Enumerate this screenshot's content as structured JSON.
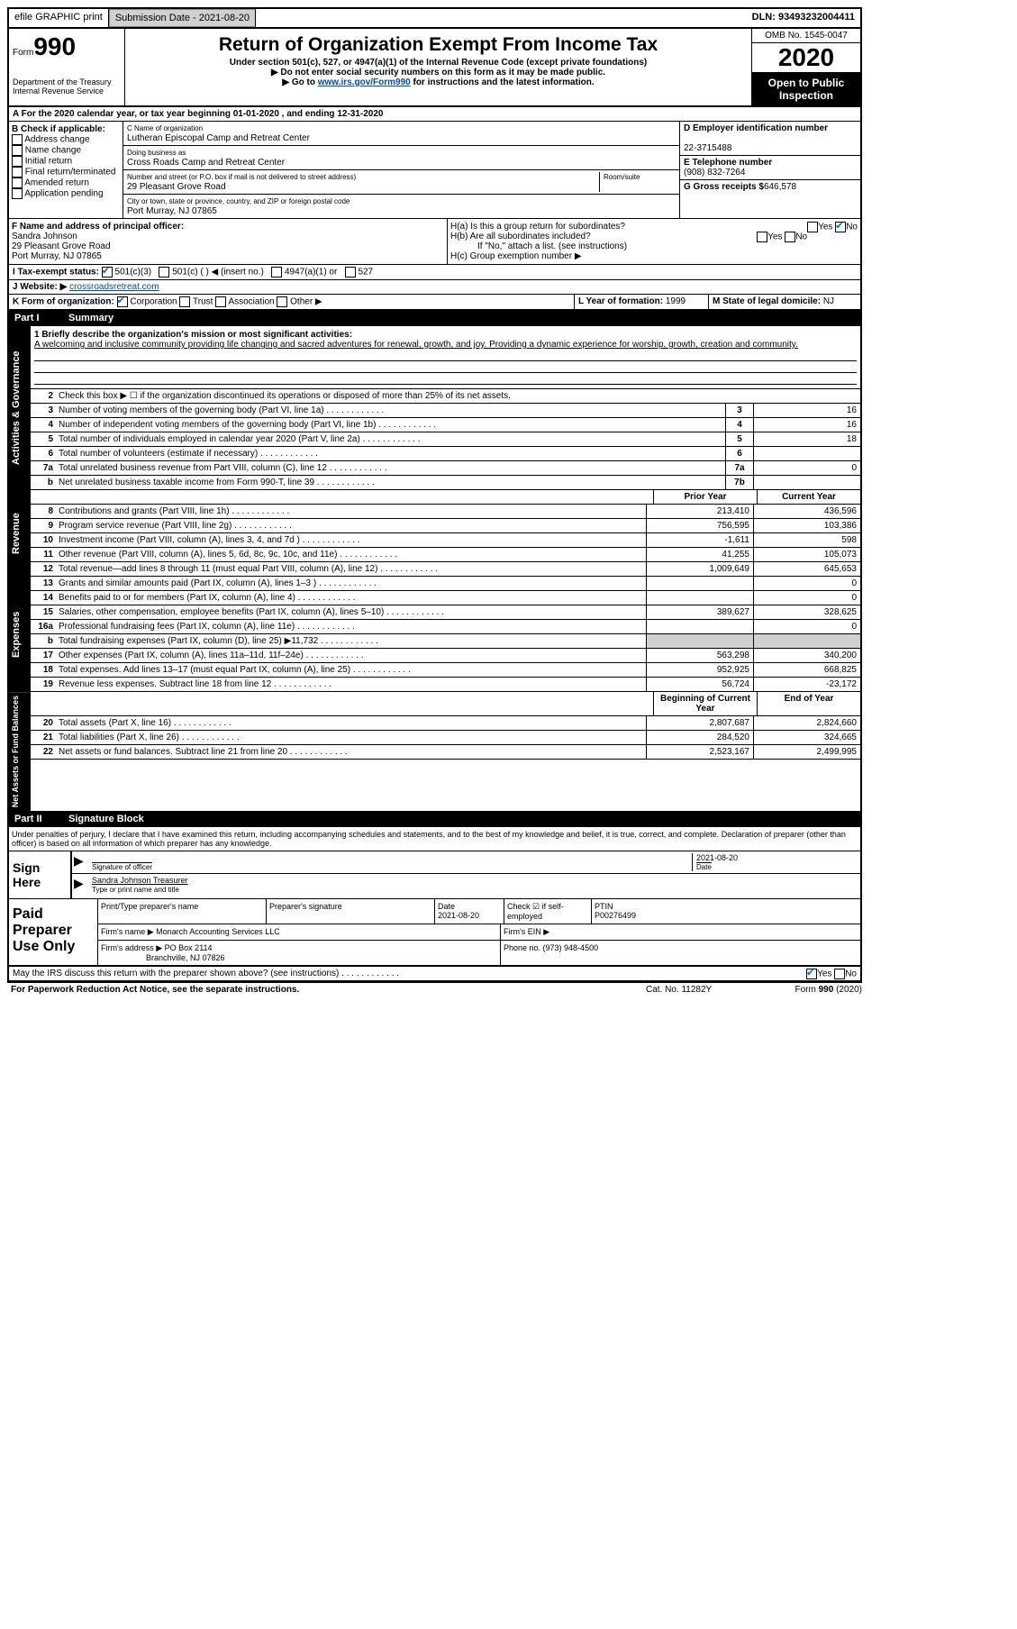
{
  "top": {
    "efile": "efile GRAPHIC print",
    "submission": "Submission Date - 2021-08-20",
    "dln": "DLN: 93493232004411"
  },
  "header": {
    "form_label": "Form",
    "form_num": "990",
    "dept": "Department of the Treasury\nInternal Revenue Service",
    "title": "Return of Organization Exempt From Income Tax",
    "sub1": "Under section 501(c), 527, or 4947(a)(1) of the Internal Revenue Code (except private foundations)",
    "sub2": "▶ Do not enter social security numbers on this form as it may be made public.",
    "sub3_pre": "▶ Go to ",
    "sub3_link": "www.irs.gov/Form990",
    "sub3_post": " for instructions and the latest information.",
    "omb": "OMB No. 1545-0047",
    "year": "2020",
    "open": "Open to Public Inspection"
  },
  "rowA": "A For the 2020 calendar year, or tax year beginning 01-01-2020   , and ending 12-31-2020",
  "B": {
    "label": "B Check if applicable:",
    "items": [
      "Address change",
      "Name change",
      "Initial return",
      "Final return/terminated",
      "Amended return",
      "Application pending"
    ]
  },
  "C": {
    "name_label": "C Name of organization",
    "name": "Lutheran Episcopal Camp and Retreat Center",
    "dba_label": "Doing business as",
    "dba": "Cross Roads Camp and Retreat Center",
    "street_label": "Number and street (or P.O. box if mail is not delivered to street address)",
    "room_label": "Room/suite",
    "street": "29 Pleasant Grove Road",
    "city_label": "City or town, state or province, country, and ZIP or foreign postal code",
    "city": "Port Murray, NJ  07865"
  },
  "D": {
    "label": "D Employer identification number",
    "ein": "22-3715488",
    "tel_label": "E Telephone number",
    "tel": "(908) 832-7264",
    "gross_label": "G Gross receipts $",
    "gross": "646,578"
  },
  "F": {
    "label": "F  Name and address of principal officer:",
    "name": "Sandra Johnson",
    "addr1": "29 Pleasant Grove Road",
    "addr2": "Port Murray, NJ  07865"
  },
  "H": {
    "a": "H(a)  Is this a group return for subordinates?",
    "b": "H(b)  Are all subordinates included?",
    "b_note": "If \"No,\" attach a list. (see instructions)",
    "c": "H(c)  Group exemption number ▶"
  },
  "I": "I  Tax-exempt status:",
  "I_opts": [
    "501(c)(3)",
    "501(c) (  ) ◀ (insert no.)",
    "4947(a)(1) or",
    "527"
  ],
  "J": {
    "label": "J  Website: ▶",
    "val": "crossroadsretreat.com"
  },
  "K": {
    "label": "K Form of organization:",
    "opts": [
      "Corporation",
      "Trust",
      "Association",
      "Other ▶"
    ]
  },
  "L": {
    "label": "L Year of formation:",
    "val": "1999"
  },
  "M": {
    "label": "M State of legal domicile:",
    "val": "NJ"
  },
  "part1": {
    "label": "Part I",
    "title": "Summary",
    "line1_label": "1  Briefly describe the organization's mission or most significant activities:",
    "mission": "A welcoming and inclusive community providing life changing and sacred adventures for renewal, growth, and joy. Providing a dynamic experience for worship, growth, creation and community.",
    "line2": "Check this box ▶ ☐  if the organization discontinued its operations or disposed of more than 25% of its net assets.",
    "vlabels": {
      "ag": "Activities & Governance",
      "rev": "Revenue",
      "exp": "Expenses",
      "na": "Net Assets or Fund Balances"
    },
    "gov_lines": [
      {
        "n": "3",
        "d": "Number of voting members of the governing body (Part VI, line 1a)",
        "b": "3",
        "v": "16"
      },
      {
        "n": "4",
        "d": "Number of independent voting members of the governing body (Part VI, line 1b)",
        "b": "4",
        "v": "16"
      },
      {
        "n": "5",
        "d": "Total number of individuals employed in calendar year 2020 (Part V, line 2a)",
        "b": "5",
        "v": "18"
      },
      {
        "n": "6",
        "d": "Total number of volunteers (estimate if necessary)",
        "b": "6",
        "v": ""
      },
      {
        "n": "7a",
        "d": "Total unrelated business revenue from Part VIII, column (C), line 12",
        "b": "7a",
        "v": "0"
      },
      {
        "n": "b",
        "d": "Net unrelated business taxable income from Form 990-T, line 39",
        "b": "7b",
        "v": ""
      }
    ],
    "col_headers": {
      "prior": "Prior Year",
      "current": "Current Year"
    },
    "rev_lines": [
      {
        "n": "8",
        "d": "Contributions and grants (Part VIII, line 1h)",
        "p": "213,410",
        "c": "436,596"
      },
      {
        "n": "9",
        "d": "Program service revenue (Part VIII, line 2g)",
        "p": "756,595",
        "c": "103,386"
      },
      {
        "n": "10",
        "d": "Investment income (Part VIII, column (A), lines 3, 4, and 7d )",
        "p": "-1,611",
        "c": "598"
      },
      {
        "n": "11",
        "d": "Other revenue (Part VIII, column (A), lines 5, 6d, 8c, 9c, 10c, and 11e)",
        "p": "41,255",
        "c": "105,073"
      },
      {
        "n": "12",
        "d": "Total revenue—add lines 8 through 11 (must equal Part VIII, column (A), line 12)",
        "p": "1,009,649",
        "c": "645,653"
      }
    ],
    "exp_lines": [
      {
        "n": "13",
        "d": "Grants and similar amounts paid (Part IX, column (A), lines 1–3 )",
        "p": "",
        "c": "0"
      },
      {
        "n": "14",
        "d": "Benefits paid to or for members (Part IX, column (A), line 4)",
        "p": "",
        "c": "0"
      },
      {
        "n": "15",
        "d": "Salaries, other compensation, employee benefits (Part IX, column (A), lines 5–10)",
        "p": "389,627",
        "c": "328,625"
      },
      {
        "n": "16a",
        "d": "Professional fundraising fees (Part IX, column (A), line 11e)",
        "p": "",
        "c": "0"
      },
      {
        "n": "b",
        "d": "Total fundraising expenses (Part IX, column (D), line 25) ▶11,732",
        "p": "shaded",
        "c": "shaded"
      },
      {
        "n": "17",
        "d": "Other expenses (Part IX, column (A), lines 11a–11d, 11f–24e)",
        "p": "563,298",
        "c": "340,200"
      },
      {
        "n": "18",
        "d": "Total expenses. Add lines 13–17 (must equal Part IX, column (A), line 25)",
        "p": "952,925",
        "c": "668,825"
      },
      {
        "n": "19",
        "d": "Revenue less expenses. Subtract line 18 from line 12",
        "p": "56,724",
        "c": "-23,172"
      }
    ],
    "na_headers": {
      "beg": "Beginning of Current Year",
      "end": "End of Year"
    },
    "na_lines": [
      {
        "n": "20",
        "d": "Total assets (Part X, line 16)",
        "p": "2,807,687",
        "c": "2,824,660"
      },
      {
        "n": "21",
        "d": "Total liabilities (Part X, line 26)",
        "p": "284,520",
        "c": "324,665"
      },
      {
        "n": "22",
        "d": "Net assets or fund balances. Subtract line 21 from line 20",
        "p": "2,523,167",
        "c": "2,499,995"
      }
    ]
  },
  "part2": {
    "label": "Part II",
    "title": "Signature Block",
    "decl": "Under penalties of perjury, I declare that I have examined this return, including accompanying schedules and statements, and to the best of my knowledge and belief, it is true, correct, and complete. Declaration of preparer (other than officer) is based on all information of which preparer has any knowledge."
  },
  "sign": {
    "label": "Sign Here",
    "sig_label": "Signature of officer",
    "date": "2021-08-20",
    "date_label": "Date",
    "name": "Sandra Johnson  Treasurer",
    "name_label": "Type or print name and title"
  },
  "prep": {
    "label": "Paid Preparer Use Only",
    "r1": {
      "c1": "Print/Type preparer's name",
      "c2": "Preparer's signature",
      "c3": "Date",
      "c3v": "2021-08-20",
      "c4": "Check ☑ if self-employed",
      "c5": "PTIN",
      "c5v": "P00276499"
    },
    "r2": {
      "label": "Firm's name    ▶",
      "val": "Monarch Accounting Services LLC",
      "ein": "Firm's EIN ▶"
    },
    "r3": {
      "label": "Firm's address ▶",
      "val1": "PO Box 2114",
      "val2": "Branchville, NJ  07826",
      "phone": "Phone no. (973) 948-4500"
    }
  },
  "discuss": "May the IRS discuss this return with the preparer shown above? (see instructions)",
  "footer": {
    "l": "For Paperwork Reduction Act Notice, see the separate instructions.",
    "c": "Cat. No. 11282Y",
    "r": "Form 990 (2020)"
  }
}
